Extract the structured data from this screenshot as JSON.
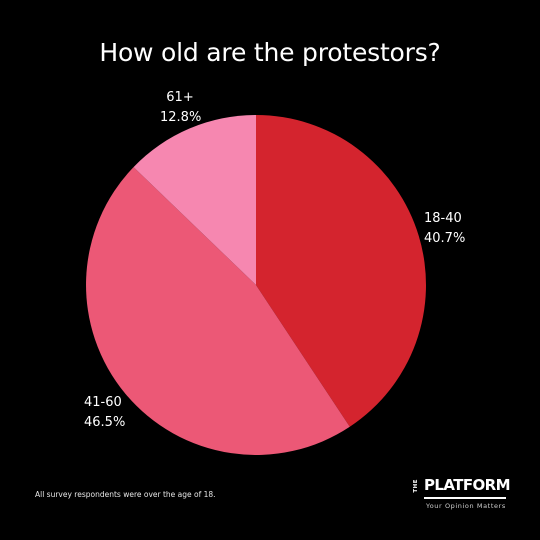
{
  "chart_data": {
    "type": "pie",
    "title": "How old are the protestors?",
    "slices": [
      {
        "label": "18-40",
        "value": 40.7,
        "display": "40.7%",
        "color": "#d4242e"
      },
      {
        "label": "41-60",
        "value": 46.5,
        "display": "46.5%",
        "color": "#ec5876"
      },
      {
        "label": "61+",
        "value": 12.8,
        "display": "12.8%",
        "color": "#f687b0"
      }
    ],
    "start_angle_deg": 0,
    "direction": "clockwise-from-top"
  },
  "footnote": "All survey respondents were over the age of 18.",
  "logo": {
    "prefix": "THE",
    "name": "PLATFORM",
    "tagline": "Your Opinion Matters"
  },
  "colors": {
    "background": "#000000",
    "text": "#ffffff",
    "logo_accent": "#e0232b"
  }
}
